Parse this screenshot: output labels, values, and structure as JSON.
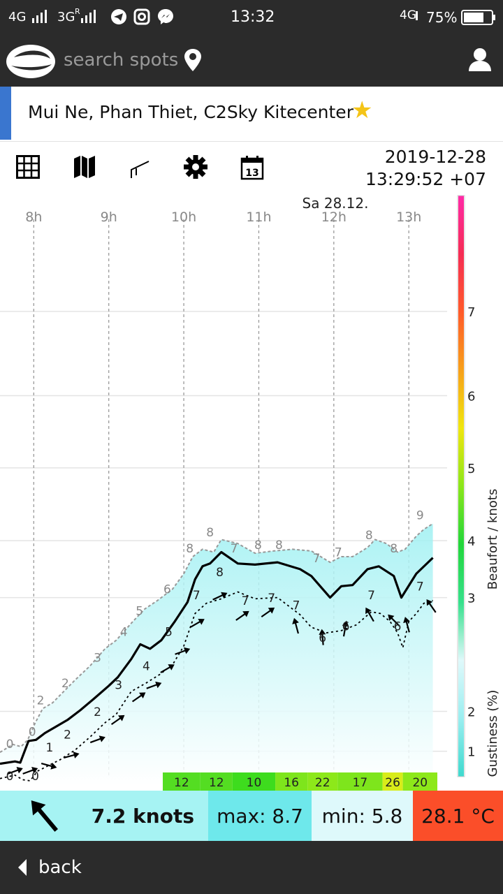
{
  "status_bar": {
    "network_1": "4G",
    "network_2": "3G",
    "roaming": "R",
    "time": "13:32",
    "network_3": "4G",
    "battery": "75%"
  },
  "app_bar": {
    "search_placeholder": "search spots",
    "icons": [
      "logo-icon",
      "location-pin-icon",
      "user-icon"
    ]
  },
  "spot": {
    "name": "Mui Ne, Phan Thiet, C2Sky Kitecenter",
    "favorite": true,
    "favorite_color": "#f4c417",
    "accent_color": "#3a76cf"
  },
  "toolbar": {
    "icons": [
      "grid-icon",
      "map-icon",
      "graph-icon",
      "gear-icon",
      "calendar-icon"
    ],
    "calendar_day": "13",
    "date": "2019-12-28",
    "time": "13:29:52 +07"
  },
  "chart_data": {
    "type": "line",
    "day_label": "Sa 28.12.",
    "x_ticks": [
      "8h",
      "9h",
      "10h",
      "11h",
      "12h",
      "13h"
    ],
    "x_tick_hours": [
      8,
      9,
      10,
      11,
      12,
      13
    ],
    "xlim": [
      7.55,
      13.38
    ],
    "ylim": [
      0,
      9.6
    ],
    "y_gridlines": [
      0.3,
      1.0,
      3.0,
      4.0,
      5.28,
      6.55,
      8.03
    ],
    "beaufort_ticks": [
      {
        "label": "1",
        "y": 0.3
      },
      {
        "label": "2",
        "y": 1.0
      },
      {
        "label": "3",
        "y": 3.0
      },
      {
        "label": "4",
        "y": 4.0
      },
      {
        "label": "5",
        "y": 5.28
      },
      {
        "label": "6",
        "y": 6.55
      },
      {
        "label": "7",
        "y": 8.03
      }
    ],
    "right_axis_label": "Beaufort / knots",
    "gust_axis_label": "Gustiness (%)",
    "colorbar": [
      "#3ed9ce",
      "#9aeef0",
      "#dff9fb",
      "#36e08c",
      "#22d63a",
      "#8be61a",
      "#f0e60f",
      "#f7a01a",
      "#ff5a2a",
      "#f52c54",
      "#ff2aa7"
    ],
    "series": [
      {
        "name": "",
        "role": "gust",
        "color": "#999999",
        "x": [
          7.55,
          7.72,
          7.83,
          7.92,
          8.02,
          8.12,
          8.25,
          8.4,
          8.55,
          8.75,
          8.95,
          9.1,
          9.3,
          9.48,
          9.65,
          9.85,
          10.0,
          10.12,
          10.25,
          10.4,
          10.5,
          10.72,
          10.95,
          11.2,
          11.45,
          11.7,
          11.95,
          12.1,
          12.25,
          12.45,
          12.55,
          12.7,
          12.85,
          12.95,
          13.1,
          13.2,
          13.32
        ],
        "y": [
          0.28,
          0.42,
          0.38,
          0.5,
          0.8,
          1.05,
          1.15,
          1.35,
          1.55,
          1.8,
          2.1,
          2.25,
          2.55,
          2.8,
          2.95,
          3.15,
          3.42,
          3.72,
          3.85,
          3.8,
          4.02,
          3.95,
          3.78,
          3.82,
          3.85,
          3.82,
          3.62,
          3.72,
          3.72,
          3.88,
          4.02,
          3.95,
          3.8,
          3.85,
          4.08,
          4.2,
          4.3
        ]
      },
      {
        "name": "",
        "role": "mean",
        "color": "#000000",
        "x": [
          7.55,
          7.75,
          7.82,
          7.93,
          8.03,
          8.15,
          8.28,
          8.45,
          8.62,
          8.8,
          9.0,
          9.12,
          9.3,
          9.42,
          9.55,
          9.7,
          9.88,
          10.05,
          10.15,
          10.25,
          10.35,
          10.5,
          10.72,
          10.95,
          11.25,
          11.55,
          11.7,
          11.95,
          12.1,
          12.25,
          12.45,
          12.6,
          12.8,
          12.9,
          13.1,
          13.32
        ],
        "y": [
          0.08,
          0.12,
          0.1,
          0.48,
          0.5,
          0.62,
          0.72,
          0.85,
          1.02,
          1.22,
          1.45,
          1.6,
          1.92,
          2.18,
          2.1,
          2.25,
          2.58,
          2.92,
          3.32,
          3.55,
          3.6,
          3.8,
          3.6,
          3.58,
          3.62,
          3.5,
          3.38,
          3.0,
          3.2,
          3.22,
          3.5,
          3.55,
          3.38,
          3.0,
          3.42,
          3.7
        ]
      },
      {
        "name": "",
        "role": "min",
        "color": "#000000",
        "x": [
          7.55,
          7.75,
          7.85,
          7.95,
          8.05,
          8.2,
          8.35,
          8.55,
          8.75,
          8.95,
          9.1,
          9.3,
          9.5,
          9.68,
          9.85,
          10.0,
          10.15,
          10.3,
          10.5,
          10.72,
          10.95,
          11.25,
          11.55,
          11.7,
          11.9,
          12.1,
          12.3,
          12.5,
          12.62,
          12.75,
          12.85,
          12.92,
          13.0,
          13.1,
          13.2,
          13.32
        ],
        "y": [
          -0.18,
          -0.12,
          -0.2,
          -0.22,
          -0.05,
          0.05,
          0.15,
          0.32,
          0.55,
          0.8,
          0.95,
          1.35,
          1.5,
          1.65,
          1.82,
          2.15,
          2.72,
          2.9,
          2.98,
          3.1,
          2.98,
          3.0,
          2.7,
          2.48,
          2.38,
          2.42,
          2.52,
          2.75,
          2.72,
          2.58,
          2.38,
          2.12,
          2.58,
          2.72,
          2.9,
          2.95
        ]
      }
    ],
    "annotations": [
      {
        "x": 7.68,
        "y": 0.28,
        "text": "0",
        "role": "gust"
      },
      {
        "x": 7.98,
        "y": 0.5,
        "text": "0",
        "role": "gust"
      },
      {
        "x": 8.09,
        "y": 1.05,
        "text": "2",
        "role": "gust"
      },
      {
        "x": 8.42,
        "y": 1.35,
        "text": "2",
        "role": "gust"
      },
      {
        "x": 8.85,
        "y": 1.8,
        "text": "3",
        "role": "gust"
      },
      {
        "x": 9.2,
        "y": 2.25,
        "text": "4",
        "role": "gust"
      },
      {
        "x": 9.41,
        "y": 2.62,
        "text": "5",
        "role": "gust"
      },
      {
        "x": 9.78,
        "y": 3.0,
        "text": "6",
        "role": "gust"
      },
      {
        "x": 10.08,
        "y": 3.72,
        "text": "8",
        "role": "gust"
      },
      {
        "x": 10.35,
        "y": 4.0,
        "text": "8",
        "role": "gust"
      },
      {
        "x": 10.67,
        "y": 3.72,
        "text": "7",
        "role": "gust"
      },
      {
        "x": 10.99,
        "y": 3.78,
        "text": "8",
        "role": "gust"
      },
      {
        "x": 11.27,
        "y": 3.78,
        "text": "8",
        "role": "gust"
      },
      {
        "x": 11.77,
        "y": 3.55,
        "text": "7",
        "role": "gust"
      },
      {
        "x": 12.06,
        "y": 3.65,
        "text": "7",
        "role": "gust"
      },
      {
        "x": 12.47,
        "y": 3.95,
        "text": "8",
        "role": "gust"
      },
      {
        "x": 12.8,
        "y": 3.72,
        "text": "8",
        "role": "gust"
      },
      {
        "x": 13.15,
        "y": 4.3,
        "text": "9",
        "role": "gust"
      },
      {
        "x": 7.68,
        "y": -0.28,
        "text": "0",
        "role": "wind"
      },
      {
        "x": 8.02,
        "y": -0.28,
        "text": "0",
        "role": "wind"
      },
      {
        "x": 8.21,
        "y": 0.22,
        "text": "1",
        "role": "wind"
      },
      {
        "x": 8.45,
        "y": 0.45,
        "text": "2",
        "role": "wind"
      },
      {
        "x": 8.85,
        "y": 0.85,
        "text": "2",
        "role": "wind"
      },
      {
        "x": 9.13,
        "y": 1.32,
        "text": "3",
        "role": "wind"
      },
      {
        "x": 9.5,
        "y": 1.65,
        "text": "4",
        "role": "wind"
      },
      {
        "x": 9.8,
        "y": 2.25,
        "text": "5",
        "role": "wind"
      },
      {
        "x": 10.17,
        "y": 2.9,
        "text": "7",
        "role": "wind"
      },
      {
        "x": 10.48,
        "y": 3.3,
        "text": "8",
        "role": "wind"
      },
      {
        "x": 10.82,
        "y": 2.8,
        "text": "7",
        "role": "wind"
      },
      {
        "x": 11.17,
        "y": 2.85,
        "text": "7",
        "role": "wind"
      },
      {
        "x": 11.5,
        "y": 2.72,
        "text": "7",
        "role": "wind"
      },
      {
        "x": 11.85,
        "y": 2.15,
        "text": "6",
        "role": "wind"
      },
      {
        "x": 12.16,
        "y": 2.35,
        "text": "6",
        "role": "wind"
      },
      {
        "x": 12.5,
        "y": 2.9,
        "text": "7",
        "role": "wind"
      },
      {
        "x": 12.85,
        "y": 2.35,
        "text": "6",
        "role": "wind"
      },
      {
        "x": 13.15,
        "y": 3.05,
        "text": "7",
        "role": "wind"
      }
    ],
    "wind_direction_arrows": [
      {
        "x": 7.75,
        "y": -0.05,
        "heading": 70
      },
      {
        "x": 7.95,
        "y": -0.05,
        "heading": 70
      },
      {
        "x": 8.2,
        "y": 0.05,
        "heading": 105
      },
      {
        "x": 8.5,
        "y": 0.22,
        "heading": 75
      },
      {
        "x": 8.85,
        "y": 0.5,
        "heading": 70
      },
      {
        "x": 9.12,
        "y": 0.85,
        "heading": 55
      },
      {
        "x": 9.4,
        "y": 1.25,
        "heading": 55
      },
      {
        "x": 9.6,
        "y": 1.45,
        "heading": 70
      },
      {
        "x": 9.78,
        "y": 1.75,
        "heading": 60
      },
      {
        "x": 9.98,
        "y": 2.05,
        "heading": 70
      },
      {
        "x": 10.18,
        "y": 2.55,
        "heading": 60
      },
      {
        "x": 10.48,
        "y": 3.02,
        "heading": 65
      },
      {
        "x": 10.78,
        "y": 2.68,
        "heading": 55
      },
      {
        "x": 11.12,
        "y": 2.74,
        "heading": 55
      },
      {
        "x": 11.5,
        "y": 2.5,
        "heading": 345
      },
      {
        "x": 11.85,
        "y": 2.3,
        "heading": 355
      },
      {
        "x": 12.15,
        "y": 2.45,
        "heading": 10
      },
      {
        "x": 12.48,
        "y": 2.7,
        "heading": 330
      },
      {
        "x": 12.8,
        "y": 2.6,
        "heading": 315
      },
      {
        "x": 12.98,
        "y": 2.52,
        "heading": 345
      },
      {
        "x": 13.3,
        "y": 2.85,
        "heading": 325
      }
    ],
    "gustiness_cells": [
      {
        "label": "12",
        "x0": 9.72,
        "x1": 10.22,
        "color": "#54dd22"
      },
      {
        "label": "12",
        "x0": 10.22,
        "x1": 10.65,
        "color": "#54dd22"
      },
      {
        "label": "10",
        "x0": 10.65,
        "x1": 11.22,
        "color": "#3edc1e"
      },
      {
        "label": "16",
        "x0": 11.22,
        "x1": 11.65,
        "color": "#7ee51c"
      },
      {
        "label": "22",
        "x0": 11.65,
        "x1": 12.05,
        "color": "#8de81a"
      },
      {
        "label": "17",
        "x0": 12.05,
        "x1": 12.65,
        "color": "#7ee51c"
      },
      {
        "label": "26",
        "x0": 12.65,
        "x1": 12.92,
        "color": "#d8ec1a"
      },
      {
        "label": "20",
        "x0": 12.92,
        "x1": 13.38,
        "color": "#8de81a"
      }
    ]
  },
  "current": {
    "direction_heading": 320,
    "speed": "7.2 knots",
    "max": "max: 8.7",
    "min": "min: 5.8",
    "temperature": "28.1 °C",
    "colors": {
      "speed_bg": "#a6f3f3",
      "max_bg": "#6ee8eb",
      "min_bg": "#def9fb",
      "temp_bg": "#fb4e29"
    }
  },
  "nav": {
    "back": "back"
  }
}
